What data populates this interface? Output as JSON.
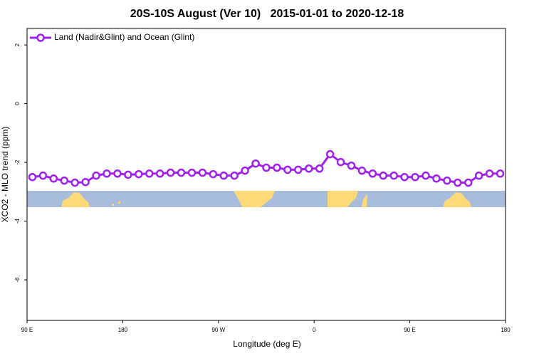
{
  "chart_data": {
    "type": "line",
    "title": "20S-10S August (Ver 10)   2015-01-01 to 2020-12-18",
    "x_label": "Longitude (deg E)",
    "y_label": "XCO2 - MLO trend (ppm)",
    "x": [
      -265,
      -255,
      -245,
      -235,
      -225,
      -215,
      -205,
      -195,
      -185,
      -175,
      -165,
      -155,
      -145,
      -135,
      -125,
      -115,
      -105,
      -95,
      -85,
      -75,
      -65,
      -55,
      -45,
      -35,
      -25,
      -15,
      -5,
      5,
      15,
      25,
      35,
      45,
      55,
      65,
      75,
      85,
      95,
      105,
      115,
      125,
      135,
      145,
      155,
      165,
      175
    ],
    "series": [
      {
        "name": "Land (Nadir&Glint) and Ocean (Glint)",
        "color": "#a020f0",
        "values": [
          -2.5,
          -2.45,
          -2.55,
          -2.62,
          -2.69,
          -2.67,
          -2.45,
          -2.38,
          -2.38,
          -2.42,
          -2.4,
          -2.38,
          -2.38,
          -2.35,
          -2.35,
          -2.35,
          -2.35,
          -2.4,
          -2.45,
          -2.45,
          -2.28,
          -2.04,
          -2.18,
          -2.18,
          -2.25,
          -2.25,
          -2.21,
          -2.21,
          -1.72,
          -1.99,
          -2.11,
          -2.28,
          -2.38,
          -2.45,
          -2.45,
          -2.5,
          -2.5,
          -2.45,
          -2.55,
          -2.62,
          -2.69,
          -2.69,
          -2.45,
          -2.38,
          -2.38
        ]
      }
    ],
    "xlim": [
      -270,
      180
    ],
    "xticks": [
      {
        "value": -270,
        "label": "90 E"
      },
      {
        "value": -180,
        "label": "180"
      },
      {
        "value": -90,
        "label": "90 W"
      },
      0,
      {
        "value": 90,
        "label": "90 E"
      },
      {
        "value": 180,
        "label": "180"
      }
    ],
    "ylim": [
      -7.38,
      2.56
    ],
    "yticks": [
      -6,
      -4,
      -2,
      0,
      2
    ],
    "legend": "top-left"
  }
}
